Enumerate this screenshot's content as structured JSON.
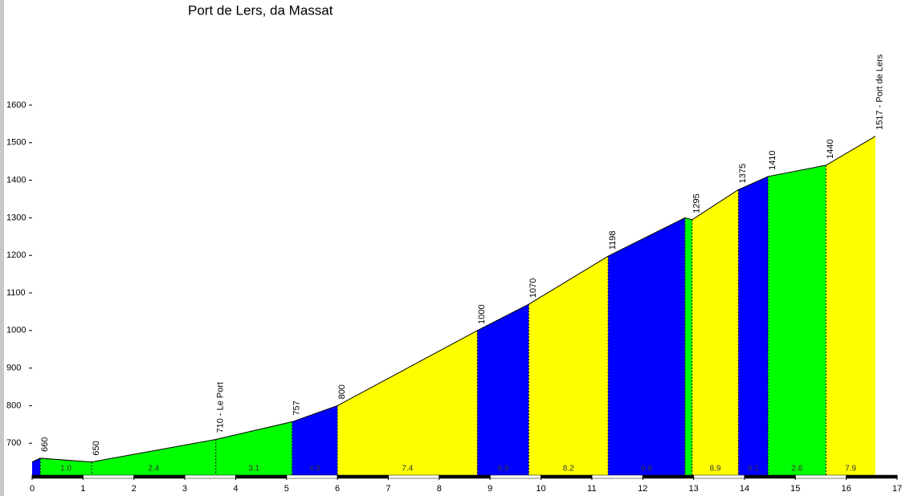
{
  "chart_data": {
    "type": "profile",
    "title": "Port de Lers, da Massat",
    "x": [
      0,
      0.16,
      1.17,
      3.61,
      5.11,
      6.0,
      8.75,
      9.76,
      11.32,
      12.83,
      12.97,
      13.88,
      14.46,
      15.6,
      16.57
    ],
    "values": [
      650,
      660,
      650,
      710,
      757,
      800,
      1000,
      1070,
      1198,
      1300,
      1295,
      1375,
      1410,
      1440,
      1517
    ],
    "value_labels": [
      null,
      "660",
      "650",
      "710 - Le Port",
      "757",
      "800",
      "1000",
      "1070",
      "1198",
      null,
      "1295",
      "1375",
      "1410",
      "1440",
      "1517 - Port de Lers"
    ],
    "segment_colors": [
      "#0000ff",
      "#00ff00",
      "#00ff00",
      "#00ff00",
      "#0000ff",
      "#ffff00",
      "#0000ff",
      "#ffff00",
      "#0000ff",
      "#00ff00",
      "#ffff00",
      "#0000ff",
      "#00ff00",
      "#ffff00"
    ],
    "segment_labels": [
      null,
      "1.0",
      "2.4",
      "3.1",
      "4.8",
      "7.4",
      "6.9",
      "8.2",
      "6.8",
      null,
      "8.9",
      "6.1",
      "2.6",
      "7.9"
    ],
    "xlim": [
      0,
      17
    ],
    "xticks": [
      0,
      1,
      2,
      3,
      4,
      5,
      6,
      7,
      8,
      9,
      10,
      11,
      12,
      13,
      14,
      15,
      16,
      17
    ],
    "ylim": [
      615,
      1600
    ],
    "yticks": [
      700,
      800,
      900,
      1000,
      1100,
      1200,
      1300,
      1400,
      1500,
      1600
    ]
  }
}
